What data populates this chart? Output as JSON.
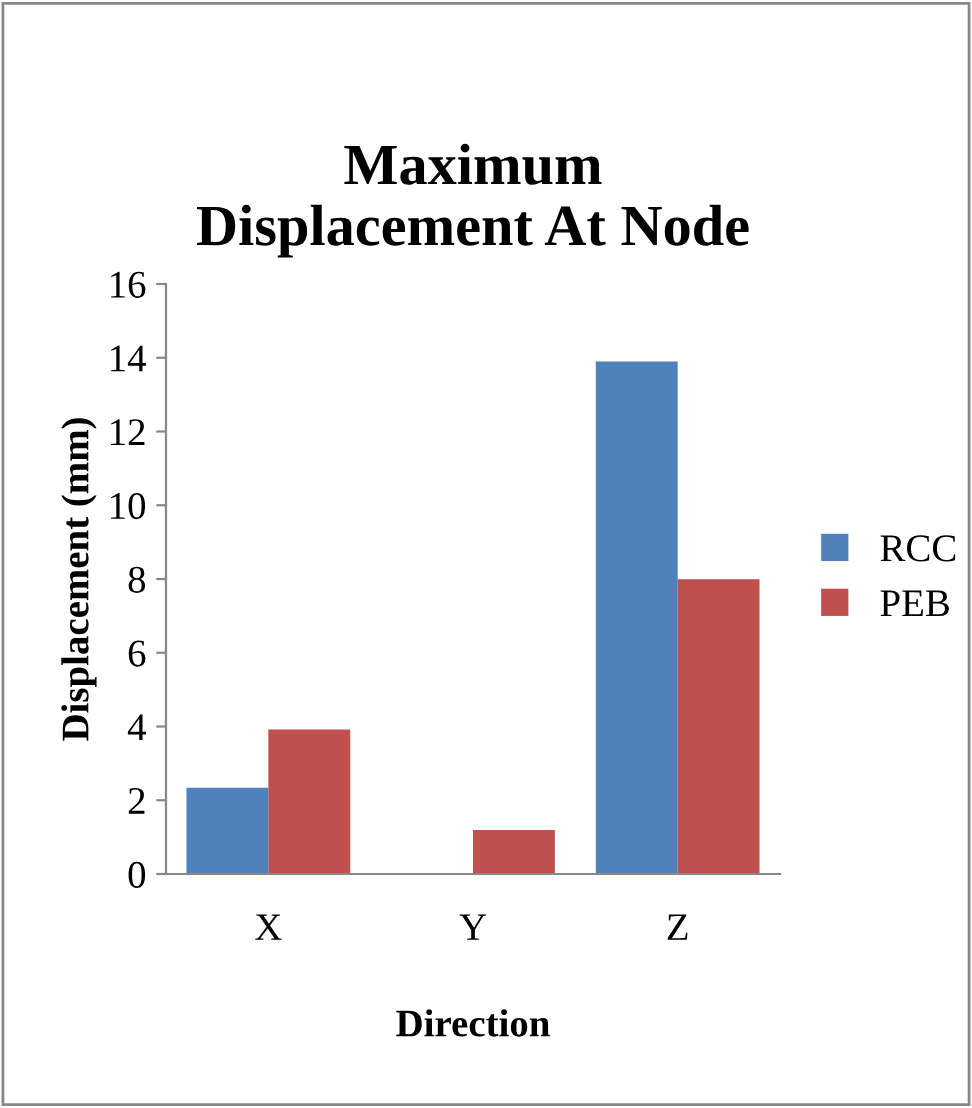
{
  "chart_data": {
    "type": "bar",
    "title": "Maximum\nDisplacement At Node",
    "xlabel": "Direction",
    "ylabel": "Displacement (mm)",
    "categories": [
      "X",
      "Y",
      "Z"
    ],
    "series": [
      {
        "name": "RCC",
        "color": "#4f81bd",
        "values": [
          2.34,
          null,
          13.9
        ]
      },
      {
        "name": "PEB",
        "color": "#c0504d",
        "values": [
          3.92,
          1.19,
          7.99
        ]
      }
    ],
    "ylim": [
      0,
      16
    ],
    "yticks": [
      0,
      2,
      4,
      6,
      8,
      10,
      12,
      14,
      16
    ],
    "grid": false,
    "legend": "right"
  }
}
